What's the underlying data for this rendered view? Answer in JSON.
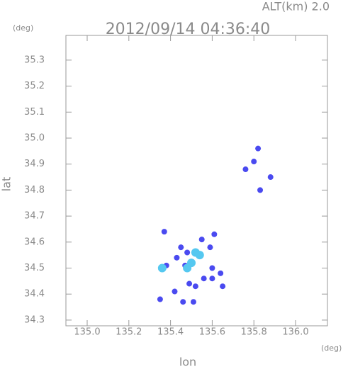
{
  "chart_data": {
    "type": "scatter",
    "title": "2012/09/14 04:36:40",
    "subtitle": "ALT(km) 2.0",
    "x_label": "lon",
    "y_label": "lat",
    "x_unit": "(deg)",
    "y_unit": "(deg)",
    "xlim": [
      134.898,
      136.153
    ],
    "ylim": [
      34.278,
      35.395
    ],
    "xticks": [
      {
        "value": 135,
        "label": "135.0"
      },
      135.2,
      135.4,
      135.6,
      135.8,
      {
        "value": 136,
        "label": "136.0"
      }
    ],
    "yticks": [
      34.3,
      34.4,
      34.5,
      34.6,
      34.7,
      34.8,
      34.9,
      {
        "value": 35,
        "label": "35.0"
      },
      35.1,
      35.2,
      35.3
    ],
    "series": [
      {
        "color": "#4a4af0",
        "x": [
          135.82,
          135.8,
          135.76,
          135.88,
          135.83,
          135.37,
          135.61,
          135.55,
          135.45,
          135.48,
          135.59,
          135.43,
          135.47,
          135.6,
          135.64,
          135.6,
          135.49,
          135.42,
          135.52,
          135.65,
          135.46,
          135.51,
          135.35,
          135.38,
          135.56
        ],
        "values": [
          34.96,
          34.91,
          34.88,
          34.85,
          34.8,
          34.64,
          34.63,
          34.61,
          34.58,
          34.56,
          34.58,
          34.54,
          34.51,
          34.5,
          34.48,
          34.46,
          34.44,
          34.41,
          34.43,
          34.43,
          34.37,
          34.37,
          34.38,
          34.51,
          34.46
        ]
      },
      {
        "color": "#55c8f0",
        "x": [
          135.52,
          135.5,
          135.54,
          135.48,
          135.36
        ],
        "values": [
          34.56,
          34.52,
          34.55,
          34.5,
          34.5
        ]
      }
    ]
  }
}
